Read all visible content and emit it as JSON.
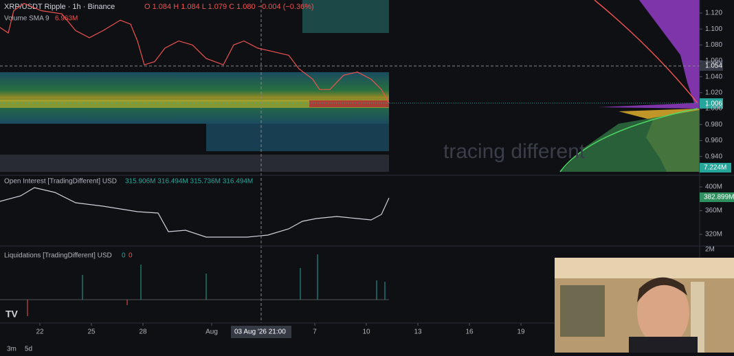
{
  "header": {
    "symbol": "XRP/USDT Ripple · 1h · Binance",
    "ohlc": "O 1.084 H 1.084 L 1.079 C 1.080 −0.004 (−0.36%)",
    "volume_label": "Volume SMA 9",
    "volume_value": "6.963M",
    "current_price": "1.006",
    "crosshair_price": "1.054",
    "volume_axis": "7.224M",
    "crosshair_time": "03 Aug '26  21:00"
  },
  "oi_header": {
    "title": "Open Interest [TradingDifferent] USD",
    "values": "315.906M  316.494M  315.736M  316.494M",
    "last": "382.899M"
  },
  "liq_header": {
    "title": "Liquidations [TradingDifferent] USD",
    "long": "0",
    "short": "0",
    "tick": "2M"
  },
  "watermark": "tracing different",
  "footer": {
    "range1": "3m",
    "range2": "5d"
  },
  "chart_data": [
    {
      "type": "line",
      "title": "XRP/USDT Ripple · 1h",
      "color": "#ef5350",
      "x": [
        19.68,
        20.16,
        20.48,
        21.08,
        22.08,
        23.28,
        24.08,
        24.88,
        25.68,
        26.68,
        27.28,
        27.68,
        28.08,
        28.68,
        29.28,
        30.08,
        30.88,
        31.68,
        32.68,
        33.28,
        33.88,
        34.68,
        35.48,
        36.48,
        37.08,
        37.88,
        38.28,
        38.88,
        39.68,
        40.48,
        41.28,
        41.88,
        42.32
      ],
      "values": [
        1.102,
        1.095,
        1.123,
        1.132,
        1.123,
        1.119,
        1.098,
        1.089,
        1.098,
        1.111,
        1.106,
        1.085,
        1.055,
        1.059,
        1.076,
        1.085,
        1.08,
        1.063,
        1.055,
        1.08,
        1.085,
        1.076,
        1.072,
        1.067,
        1.05,
        1.037,
        1.024,
        1.024,
        1.042,
        1.046,
        1.037,
        1.024,
        1.007
      ],
      "xlim": [
        19.68,
        60.4
      ],
      "ylim": [
        0.9207,
        1.1364
      ],
      "yticks": [
        {
          "value": 0.94,
          "label": "0.940"
        },
        {
          "value": 0.96,
          "label": "0.960"
        },
        {
          "value": 0.98,
          "label": "0.980"
        },
        {
          "value": 1.0,
          "label": "1.000"
        },
        {
          "value": 1.02,
          "label": "1.020"
        },
        {
          "value": 1.04,
          "label": "1.040"
        },
        {
          "value": 1.06,
          "label": "1.060"
        },
        {
          "value": 1.08,
          "label": "1.080"
        },
        {
          "value": 1.1,
          "label": "1.100"
        },
        {
          "value": 1.12,
          "label": "1.120"
        }
      ],
      "xticks": [
        22,
        25,
        28,
        {
          "value": 32,
          "label": "Aug"
        },
        {
          "value": 38,
          "label": "7"
        },
        {
          "value": 41,
          "label": "10"
        },
        {
          "value": 44,
          "label": "13"
        },
        {
          "value": 47,
          "label": "16"
        },
        {
          "value": 50,
          "label": "19"
        }
      ]
    },
    {
      "type": "line",
      "title": "Open Interest",
      "color": "#d1d4dc",
      "x": [
        19.68,
        20.88,
        21.68,
        22.88,
        24.08,
        25.68,
        27.68,
        28.88,
        29.48,
        30.48,
        31.68,
        32.88,
        34.08,
        35.28,
        36.48,
        37.28,
        38.08,
        39.28,
        40.48,
        41.28,
        41.88,
        42.32
      ],
      "values": [
        375.6,
        384.9,
        398.8,
        390.7,
        373.3,
        367.5,
        358.3,
        356,
        324.6,
        327,
        315.4,
        315.4,
        315.4,
        318.9,
        329.3,
        342,
        346.7,
        350.1,
        346.7,
        344.4,
        353.6,
        381.5
      ],
      "xlim": [
        19.68,
        60.4
      ],
      "ylim": [
        303.8,
        413.9
      ],
      "yticks": [
        {
          "value": 320,
          "label": "320M"
        },
        {
          "value": 360,
          "label": "360M"
        },
        {
          "value": 400,
          "label": "400M"
        }
      ]
    }
  ]
}
